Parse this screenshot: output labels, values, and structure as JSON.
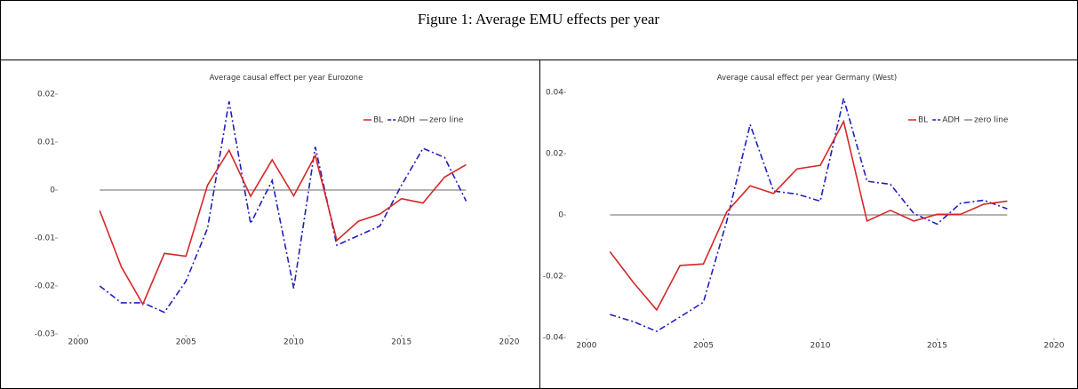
{
  "caption": "Figure 1: Average EMU effects per year",
  "chart_data": [
    {
      "type": "line",
      "title": "Average causal effect per year Eurozone",
      "x": [
        2001,
        2002,
        2003,
        2004,
        2005,
        2006,
        2007,
        2008,
        2009,
        2010,
        2011,
        2012,
        2013,
        2014,
        2015,
        2016,
        2017,
        2018
      ],
      "series": [
        {
          "name": "BL",
          "color": "#d62728",
          "dash": "solid",
          "values": [
            -0.0043,
            -0.016,
            -0.0238,
            -0.0132,
            -0.0138,
            0.001,
            0.0083,
            -0.0013,
            0.0063,
            -0.0012,
            0.0072,
            -0.0105,
            -0.0065,
            -0.005,
            -0.0018,
            -0.0027,
            0.0027,
            0.0053
          ]
        },
        {
          "name": "ADH",
          "color": "#1f1fbf",
          "dash": "dashdot",
          "values": [
            -0.02,
            -0.0235,
            -0.0235,
            -0.0255,
            -0.019,
            -0.008,
            0.0185,
            -0.007,
            0.002,
            -0.0205,
            0.009,
            -0.0115,
            -0.0095,
            -0.0075,
            0.001,
            0.0087,
            0.0068,
            -0.0023
          ]
        },
        {
          "name": "zero line",
          "color": "#888888",
          "dash": "solid",
          "values": [
            0,
            0,
            0,
            0,
            0,
            0,
            0,
            0,
            0,
            0,
            0,
            0,
            0,
            0,
            0,
            0,
            0,
            0
          ]
        }
      ],
      "xlim": [
        2000,
        2020
      ],
      "xticks": [
        2000,
        2005,
        2010,
        2015,
        2020
      ],
      "ylim": [
        -0.03,
        0.02
      ],
      "yticks": [
        -0.03,
        -0.02,
        -0.01,
        0,
        0.01,
        0.02
      ],
      "legend": "top right",
      "grid": false
    },
    {
      "type": "line",
      "title": "Average causal effect per year Germany (West)",
      "x": [
        2001,
        2002,
        2003,
        2004,
        2005,
        2006,
        2007,
        2008,
        2009,
        2010,
        2011,
        2012,
        2013,
        2014,
        2015,
        2016,
        2017,
        2018
      ],
      "series": [
        {
          "name": "BL",
          "color": "#d62728",
          "dash": "solid",
          "values": [
            -0.012,
            -0.022,
            -0.031,
            -0.0165,
            -0.016,
            0.001,
            0.0095,
            0.007,
            0.015,
            0.0162,
            0.0305,
            -0.002,
            0.0015,
            -0.002,
            0.0002,
            0.0002,
            0.0035,
            0.0045
          ]
        },
        {
          "name": "ADH",
          "color": "#1f1fbf",
          "dash": "dashdot",
          "values": [
            -0.0325,
            -0.0348,
            -0.038,
            -0.0333,
            -0.0285,
            -0.002,
            0.0295,
            0.0078,
            0.0068,
            0.0045,
            0.038,
            0.011,
            0.01,
            0.0005,
            -0.003,
            0.0038,
            0.0048,
            0.002
          ]
        },
        {
          "name": "zero line",
          "color": "#888888",
          "dash": "solid",
          "values": [
            0,
            0,
            0,
            0,
            0,
            0,
            0,
            0,
            0,
            0,
            0,
            0,
            0,
            0,
            0,
            0,
            0,
            0
          ]
        }
      ],
      "xlim": [
        2000,
        2020
      ],
      "xticks": [
        2000,
        2005,
        2010,
        2015,
        2020
      ],
      "ylim": [
        -0.04,
        0.04
      ],
      "yticks": [
        -0.04,
        -0.02,
        0,
        0.02,
        0.04
      ],
      "legend": "top right",
      "grid": false
    }
  ]
}
